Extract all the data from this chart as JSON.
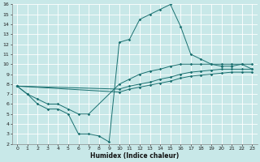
{
  "xlabel": "Humidex (Indice chaleur)",
  "bg_color": "#c8e8e8",
  "grid_color": "#ffffff",
  "line_color": "#1a7070",
  "xlim": [
    -0.5,
    23.5
  ],
  "ylim": [
    2,
    16
  ],
  "xticks": [
    0,
    1,
    2,
    3,
    4,
    5,
    6,
    7,
    8,
    9,
    10,
    11,
    12,
    13,
    14,
    15,
    16,
    17,
    18,
    19,
    20,
    21,
    22,
    23
  ],
  "yticks": [
    2,
    3,
    4,
    5,
    6,
    7,
    8,
    9,
    10,
    11,
    12,
    13,
    14,
    15,
    16
  ],
  "lines": [
    {
      "x": [
        0,
        1,
        2,
        3,
        4,
        5,
        6,
        7,
        8,
        9,
        10,
        11,
        12,
        13,
        14,
        15,
        16,
        17,
        18,
        19,
        20,
        21,
        22,
        23
      ],
      "y": [
        7.8,
        7.0,
        6.0,
        5.5,
        5.5,
        5.0,
        3.0,
        3.0,
        2.8,
        2.2,
        12.2,
        12.5,
        14.5,
        15.0,
        15.5,
        16.0,
        13.8,
        11.0,
        10.5,
        10.0,
        9.8,
        9.8,
        10.0,
        9.5
      ]
    },
    {
      "x": [
        0,
        1,
        2,
        3,
        4,
        5,
        6,
        7,
        10,
        11,
        12,
        13,
        14,
        15,
        16,
        17,
        18,
        19,
        20,
        21,
        22,
        23
      ],
      "y": [
        7.8,
        7.0,
        6.5,
        6.0,
        6.0,
        5.5,
        5.0,
        5.0,
        8.0,
        8.5,
        9.0,
        9.3,
        9.5,
        9.8,
        10.0,
        10.0,
        10.0,
        10.0,
        10.0,
        10.0,
        10.0,
        10.0
      ]
    },
    {
      "x": [
        0,
        10,
        11,
        12,
        13,
        14,
        15,
        16,
        17,
        18,
        19,
        20,
        21,
        22,
        23
      ],
      "y": [
        7.8,
        7.5,
        7.8,
        8.0,
        8.2,
        8.5,
        8.7,
        9.0,
        9.2,
        9.3,
        9.4,
        9.5,
        9.5,
        9.5,
        9.5
      ]
    },
    {
      "x": [
        0,
        10,
        11,
        12,
        13,
        14,
        15,
        16,
        17,
        18,
        19,
        20,
        21,
        22,
        23
      ],
      "y": [
        7.8,
        7.2,
        7.5,
        7.7,
        7.9,
        8.1,
        8.3,
        8.6,
        8.8,
        8.9,
        9.0,
        9.1,
        9.2,
        9.2,
        9.2
      ]
    }
  ]
}
